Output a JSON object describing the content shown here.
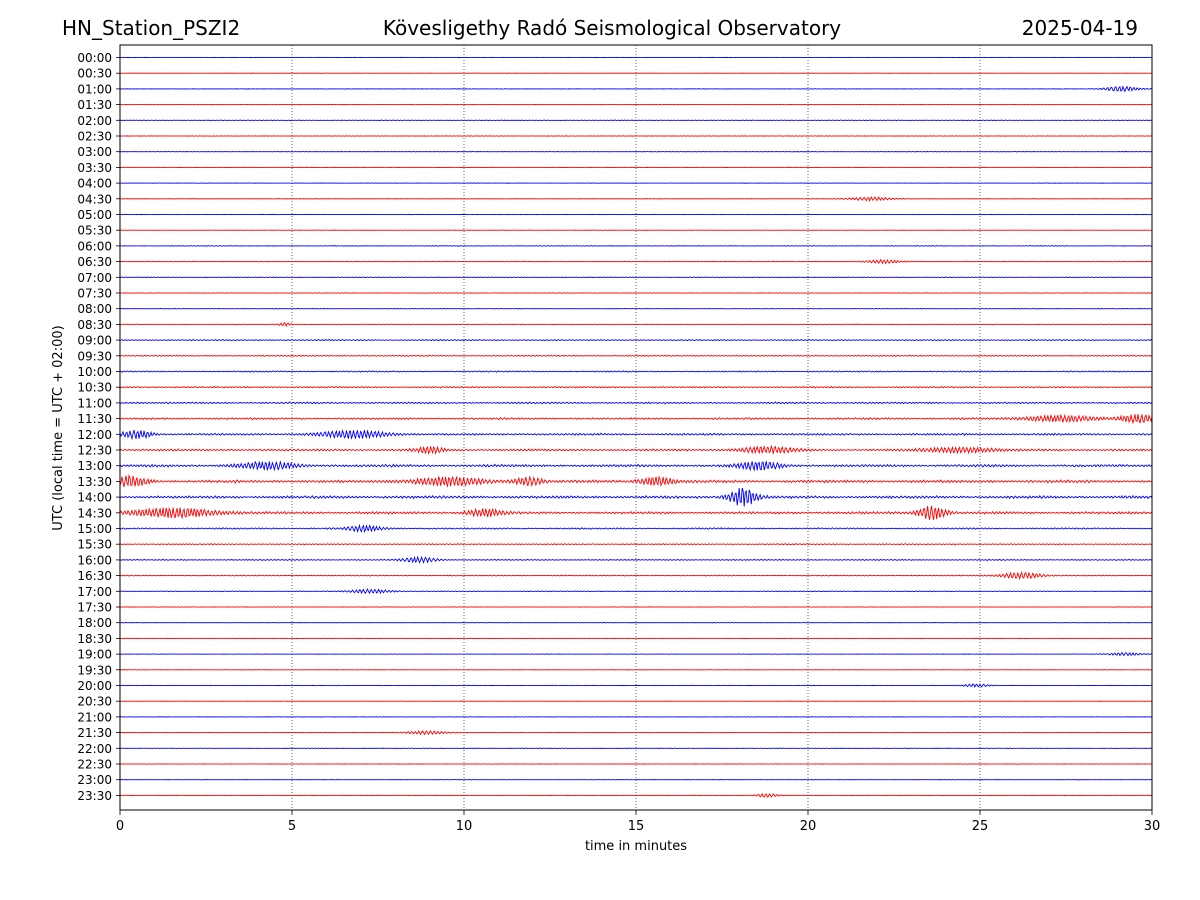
{
  "chart_data": {
    "type": "line",
    "title_left": "HN_Station_PSZI2",
    "title_center": "Kövesligethy Radó Seismological Observatory",
    "title_right": "2025-04-19",
    "xlabel": "time in minutes",
    "ylabel": "UTC (local time = UTC + 02:00)",
    "xlim": [
      0,
      30
    ],
    "x_ticks": [
      0,
      5,
      10,
      15,
      20,
      25,
      30
    ],
    "x_tick_labels": [
      "0",
      "5",
      "10",
      "15",
      "20",
      "25",
      "30"
    ],
    "vertical_gridlines": [
      5,
      10,
      15,
      20,
      25
    ],
    "row_interval_minutes": 30,
    "series_colors": [
      "#0000ff",
      "#ff0000"
    ],
    "row_labels": [
      "00:00",
      "00:30",
      "01:00",
      "01:30",
      "02:00",
      "02:30",
      "03:00",
      "03:30",
      "04:00",
      "04:30",
      "05:00",
      "05:30",
      "06:00",
      "06:30",
      "07:00",
      "07:30",
      "08:00",
      "08:30",
      "09:00",
      "09:30",
      "10:00",
      "10:30",
      "11:00",
      "11:30",
      "12:00",
      "12:30",
      "13:00",
      "13:30",
      "14:00",
      "14:30",
      "15:00",
      "15:30",
      "16:00",
      "16:30",
      "17:00",
      "17:30",
      "18:00",
      "18:30",
      "19:00",
      "19:30",
      "20:00",
      "20:30",
      "21:00",
      "21:30",
      "22:00",
      "22:30",
      "23:00",
      "23:30"
    ],
    "background_noise": [
      0.12,
      0.12,
      0.12,
      0.13,
      0.18,
      0.13,
      0.13,
      0.12,
      0.12,
      0.14,
      0.14,
      0.13,
      0.18,
      0.2,
      0.22,
      0.18,
      0.16,
      0.22,
      0.35,
      0.33,
      0.38,
      0.42,
      0.5,
      0.55,
      0.6,
      0.6,
      0.75,
      0.8,
      0.8,
      0.7,
      0.45,
      0.3,
      0.3,
      0.25,
      0.22,
      0.15,
      0.14,
      0.14,
      0.12,
      0.12,
      0.14,
      0.12,
      0.12,
      0.14,
      0.14,
      0.12,
      0.12,
      0.16
    ],
    "events": [
      {
        "row": 2,
        "minute": 29.1,
        "amplitude": 2.5,
        "width": 0.5
      },
      {
        "row": 9,
        "minute": 21.8,
        "amplitude": 1.8,
        "width": 0.6
      },
      {
        "row": 13,
        "minute": 22.2,
        "amplitude": 1.6,
        "width": 0.5
      },
      {
        "row": 17,
        "minute": 4.8,
        "amplitude": 1.5,
        "width": 0.2
      },
      {
        "row": 23,
        "minute": 27.3,
        "amplitude": 3.0,
        "width": 1.0
      },
      {
        "row": 23,
        "minute": 29.6,
        "amplitude": 4.0,
        "width": 0.5
      },
      {
        "row": 24,
        "minute": 0.5,
        "amplitude": 4.0,
        "width": 0.4
      },
      {
        "row": 24,
        "minute": 6.8,
        "amplitude": 3.5,
        "width": 1.0
      },
      {
        "row": 25,
        "minute": 9.0,
        "amplitude": 3.0,
        "width": 0.4
      },
      {
        "row": 25,
        "minute": 18.8,
        "amplitude": 3.0,
        "width": 0.8
      },
      {
        "row": 25,
        "minute": 24.4,
        "amplitude": 2.5,
        "width": 1.0
      },
      {
        "row": 26,
        "minute": 4.3,
        "amplitude": 3.5,
        "width": 0.8
      },
      {
        "row": 26,
        "minute": 18.6,
        "amplitude": 4.0,
        "width": 0.6
      },
      {
        "row": 27,
        "minute": 0.3,
        "amplitude": 5.0,
        "width": 0.5
      },
      {
        "row": 27,
        "minute": 9.5,
        "amplitude": 4.0,
        "width": 1.0
      },
      {
        "row": 27,
        "minute": 11.9,
        "amplitude": 4.0,
        "width": 0.4
      },
      {
        "row": 27,
        "minute": 15.6,
        "amplitude": 4.0,
        "width": 0.5
      },
      {
        "row": 28,
        "minute": 18.1,
        "amplitude": 9.0,
        "width": 0.4
      },
      {
        "row": 29,
        "minute": 1.6,
        "amplitude": 4.5,
        "width": 1.2
      },
      {
        "row": 29,
        "minute": 10.6,
        "amplitude": 3.5,
        "width": 0.5
      },
      {
        "row": 29,
        "minute": 23.6,
        "amplitude": 7.0,
        "width": 0.4
      },
      {
        "row": 30,
        "minute": 7.1,
        "amplitude": 3.0,
        "width": 0.5
      },
      {
        "row": 32,
        "minute": 8.7,
        "amplitude": 2.5,
        "width": 0.5
      },
      {
        "row": 33,
        "minute": 26.2,
        "amplitude": 3.0,
        "width": 0.6
      },
      {
        "row": 34,
        "minute": 7.3,
        "amplitude": 2.0,
        "width": 0.6
      },
      {
        "row": 38,
        "minute": 29.2,
        "amplitude": 1.5,
        "width": 0.5
      },
      {
        "row": 40,
        "minute": 24.9,
        "amplitude": 1.5,
        "width": 0.4
      },
      {
        "row": 43,
        "minute": 8.9,
        "amplitude": 1.6,
        "width": 0.6
      },
      {
        "row": 47,
        "minute": 18.8,
        "amplitude": 1.8,
        "width": 0.3
      }
    ]
  }
}
